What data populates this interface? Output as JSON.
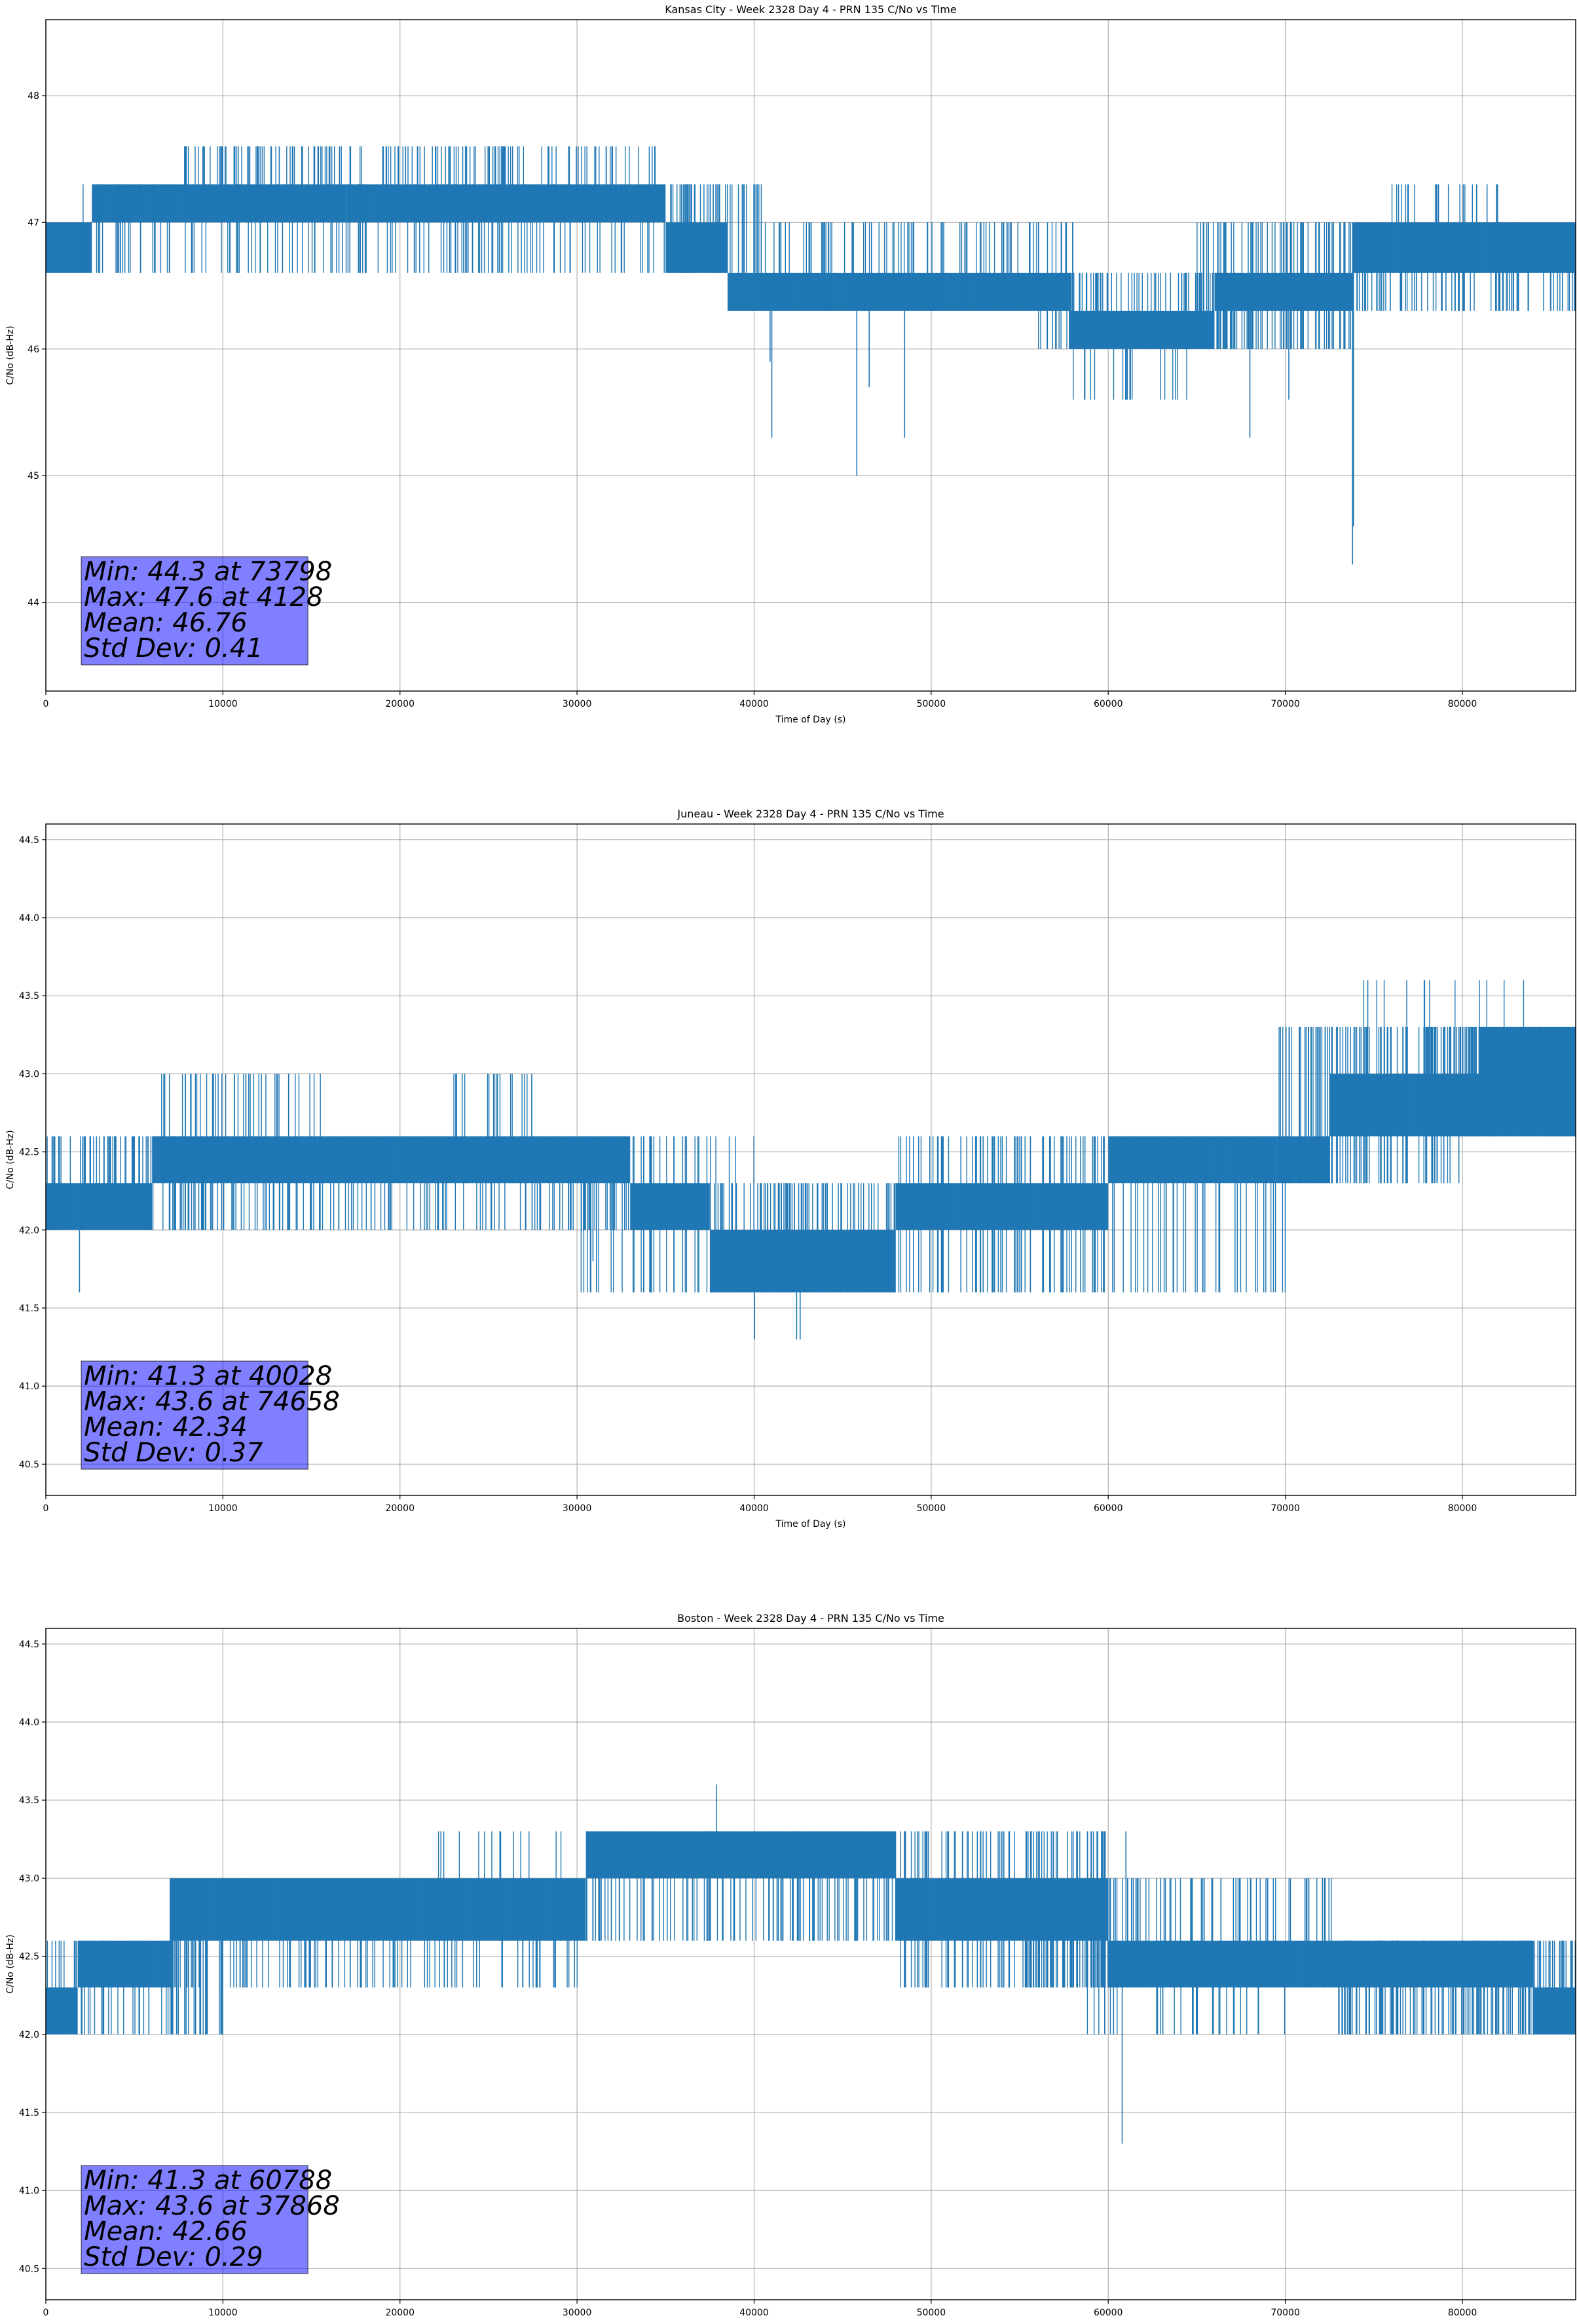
{
  "chart_data": [
    {
      "type": "line",
      "title": "Kansas City - Week 2328 Day 4 - PRN 135 C/No vs Time",
      "xlabel": "Time of Day (s)",
      "ylabel": "C/No (dB-Hz)",
      "xlim": [
        0,
        86400
      ],
      "ylim": [
        43.3,
        48.6
      ],
      "xticks": [
        0,
        10000,
        20000,
        30000,
        40000,
        50000,
        60000,
        70000,
        80000
      ],
      "yticks": [
        44,
        45,
        46,
        47,
        48
      ],
      "tick_decimals": 0,
      "grid": true,
      "color": "#1f77b4",
      "segments": [
        {
          "x": [
            0,
            2600
          ],
          "low": 46.6,
          "high": 47.0
        },
        {
          "x": [
            2600,
            10000
          ],
          "low": 47.0,
          "high": 47.3
        },
        {
          "x": [
            10000,
            17000
          ],
          "low": 47.0,
          "high": 47.3
        },
        {
          "x": [
            17000,
            25000
          ],
          "low": 47.0,
          "high": 47.3
        },
        {
          "x": [
            25000,
            35000
          ],
          "low": 47.0,
          "high": 47.3
        },
        {
          "x": [
            35000,
            38000
          ],
          "low": 46.6,
          "high": 47.0
        },
        {
          "x": [
            38000,
            38500
          ],
          "low": 46.6,
          "high": 47.0
        },
        {
          "x": [
            38500,
            57800
          ],
          "low": 46.3,
          "high": 46.6
        },
        {
          "x": [
            57800,
            66000
          ],
          "low": 46.0,
          "high": 46.3
        },
        {
          "x": [
            66000,
            73800
          ],
          "low": 46.3,
          "high": 46.6
        },
        {
          "x": [
            73800,
            86400
          ],
          "low": 46.6,
          "high": 47.0
        }
      ],
      "flicker": [
        {
          "x": [
            2000,
            36000
          ],
          "low": 46.6,
          "high": 47.3,
          "count": 160
        },
        {
          "x": [
            7800,
            27000
          ],
          "low": 47.0,
          "high": 47.6,
          "count": 130
        },
        {
          "x": [
            28000,
            34500
          ],
          "low": 47.0,
          "high": 47.6,
          "count": 30
        },
        {
          "x": [
            36000,
            40500
          ],
          "low": 46.6,
          "high": 47.3,
          "count": 40
        },
        {
          "x": [
            40000,
            58000
          ],
          "low": 46.3,
          "high": 47.0,
          "count": 90
        },
        {
          "x": [
            56000,
            68000
          ],
          "low": 46.0,
          "high": 46.6,
          "count": 90
        },
        {
          "x": [
            58000,
            64500
          ],
          "low": 45.6,
          "high": 46.0,
          "count": 20
        },
        {
          "x": [
            65000,
            74000
          ],
          "low": 46.0,
          "high": 47.0,
          "count": 70
        },
        {
          "x": [
            73800,
            86400
          ],
          "low": 46.3,
          "high": 47.0,
          "count": 90
        },
        {
          "x": [
            76000,
            82000
          ],
          "low": 47.0,
          "high": 47.3,
          "count": 25
        }
      ],
      "spikes": [
        {
          "x": 41000,
          "y": 45.3
        },
        {
          "x": 45800,
          "y": 45.0
        },
        {
          "x": 48500,
          "y": 45.3
        },
        {
          "x": 40900,
          "y": 45.9
        },
        {
          "x": 46500,
          "y": 45.7
        },
        {
          "x": 68000,
          "y": 45.3
        },
        {
          "x": 70200,
          "y": 45.6
        },
        {
          "x": 73798,
          "y": 44.3
        },
        {
          "x": 73850,
          "y": 44.6
        }
      ],
      "stats": [
        "Min: 44.3 at 73798",
        "Max: 47.6 at 4128",
        "Mean: 46.76",
        "Std Dev: 0.41"
      ]
    },
    {
      "type": "line",
      "title": "Juneau - Week 2328 Day 4 - PRN 135 C/No vs Time",
      "xlabel": "Time of Day (s)",
      "ylabel": "C/No (dB-Hz)",
      "xlim": [
        0,
        86400
      ],
      "ylim": [
        40.3,
        44.6
      ],
      "xticks": [
        0,
        10000,
        20000,
        30000,
        40000,
        50000,
        60000,
        70000,
        80000
      ],
      "yticks": [
        40.5,
        41.0,
        41.5,
        42.0,
        42.5,
        43.0,
        43.5,
        44.0,
        44.5
      ],
      "tick_decimals": 1,
      "grid": true,
      "color": "#1f77b4",
      "segments": [
        {
          "x": [
            0,
            6000
          ],
          "low": 42.0,
          "high": 42.3
        },
        {
          "x": [
            6000,
            33000
          ],
          "low": 42.3,
          "high": 42.6
        },
        {
          "x": [
            33000,
            37500
          ],
          "low": 42.0,
          "high": 42.3
        },
        {
          "x": [
            37500,
            48000
          ],
          "low": 41.6,
          "high": 42.0
        },
        {
          "x": [
            48000,
            60000
          ],
          "low": 42.0,
          "high": 42.3
        },
        {
          "x": [
            60000,
            69500
          ],
          "low": 42.3,
          "high": 42.6
        },
        {
          "x": [
            69500,
            72500
          ],
          "low": 42.3,
          "high": 42.6
        },
        {
          "x": [
            72500,
            78000
          ],
          "low": 42.6,
          "high": 43.0
        },
        {
          "x": [
            78000,
            81000
          ],
          "low": 42.6,
          "high": 43.0
        },
        {
          "x": [
            81000,
            86400
          ],
          "low": 42.6,
          "high": 43.3
        }
      ],
      "flicker": [
        {
          "x": [
            0,
            33000
          ],
          "low": 42.0,
          "high": 42.6,
          "count": 200
        },
        {
          "x": [
            6500,
            16000
          ],
          "low": 42.3,
          "high": 43.0,
          "count": 45
        },
        {
          "x": [
            23000,
            27500
          ],
          "low": 42.3,
          "high": 43.0,
          "count": 20
        },
        {
          "x": [
            30000,
            40000
          ],
          "low": 41.6,
          "high": 42.6,
          "count": 35
        },
        {
          "x": [
            37500,
            48000
          ],
          "low": 41.6,
          "high": 42.3,
          "count": 80
        },
        {
          "x": [
            48000,
            70000
          ],
          "low": 41.6,
          "high": 42.6,
          "count": 110
        },
        {
          "x": [
            69500,
            80000
          ],
          "low": 42.3,
          "high": 43.3,
          "count": 90
        },
        {
          "x": [
            78000,
            86400
          ],
          "low": 42.6,
          "high": 43.3,
          "count": 110
        },
        {
          "x": [
            74000,
            84000
          ],
          "low": 43.0,
          "high": 43.6,
          "count": 12
        }
      ],
      "spikes": [
        {
          "x": 1900,
          "y": 41.6
        },
        {
          "x": 30900,
          "y": 41.8
        },
        {
          "x": 31100,
          "y": 41.6
        },
        {
          "x": 40028,
          "y": 41.3
        },
        {
          "x": 42400,
          "y": 41.3
        },
        {
          "x": 42600,
          "y": 41.3
        },
        {
          "x": 74658,
          "y": 43.6
        }
      ],
      "stats": [
        "Min: 41.3 at 40028",
        "Max: 43.6 at 74658",
        "Mean: 42.34",
        "Std Dev: 0.37"
      ]
    },
    {
      "type": "line",
      "title": "Boston - Week 2328 Day 4 - PRN 135 C/No vs Time",
      "xlabel": "Time of Day (s)",
      "ylabel": "C/No (dB-Hz)",
      "xlim": [
        0,
        86400
      ],
      "ylim": [
        40.3,
        44.6
      ],
      "xticks": [
        0,
        10000,
        20000,
        30000,
        40000,
        50000,
        60000,
        70000,
        80000
      ],
      "yticks": [
        40.5,
        41.0,
        41.5,
        42.0,
        42.5,
        43.0,
        43.5,
        44.0,
        44.5
      ],
      "tick_decimals": 1,
      "grid": true,
      "color": "#1f77b4",
      "segments": [
        {
          "x": [
            0,
            1800
          ],
          "low": 42.0,
          "high": 42.3
        },
        {
          "x": [
            1800,
            7000
          ],
          "low": 42.3,
          "high": 42.6
        },
        {
          "x": [
            7000,
            30500
          ],
          "low": 42.6,
          "high": 43.0
        },
        {
          "x": [
            30500,
            48000
          ],
          "low": 43.0,
          "high": 43.3
        },
        {
          "x": [
            48000,
            60000
          ],
          "low": 42.6,
          "high": 43.0
        },
        {
          "x": [
            60000,
            73000
          ],
          "low": 42.3,
          "high": 42.6
        },
        {
          "x": [
            73000,
            84000
          ],
          "low": 42.3,
          "high": 42.6
        },
        {
          "x": [
            84000,
            86400
          ],
          "low": 42.0,
          "high": 42.3
        }
      ],
      "flicker": [
        {
          "x": [
            0,
            10000
          ],
          "low": 42.0,
          "high": 42.6,
          "count": 60
        },
        {
          "x": [
            7000,
            30500
          ],
          "low": 42.3,
          "high": 43.0,
          "count": 110
        },
        {
          "x": [
            20000,
            30500
          ],
          "low": 42.6,
          "high": 43.3,
          "count": 14
        },
        {
          "x": [
            30500,
            48000
          ],
          "low": 42.6,
          "high": 43.3,
          "count": 110
        },
        {
          "x": [
            48000,
            60000
          ],
          "low": 42.3,
          "high": 43.3,
          "count": 80
        },
        {
          "x": [
            55000,
            73000
          ],
          "low": 42.3,
          "high": 43.0,
          "count": 110
        },
        {
          "x": [
            58000,
            70000
          ],
          "low": 42.0,
          "high": 42.6,
          "count": 30
        },
        {
          "x": [
            73000,
            86400
          ],
          "low": 42.0,
          "high": 42.6,
          "count": 140
        }
      ],
      "spikes": [
        {
          "x": 37868,
          "y": 43.6
        },
        {
          "x": 60788,
          "y": 41.3
        },
        {
          "x": 61000,
          "y": 43.3
        },
        {
          "x": 59800,
          "y": 42.0
        },
        {
          "x": 60300,
          "y": 42.0
        }
      ],
      "stats": [
        "Min: 41.3 at 60788",
        "Max: 43.6 at 37868",
        "Mean: 42.66",
        "Std Dev: 0.29"
      ]
    }
  ]
}
